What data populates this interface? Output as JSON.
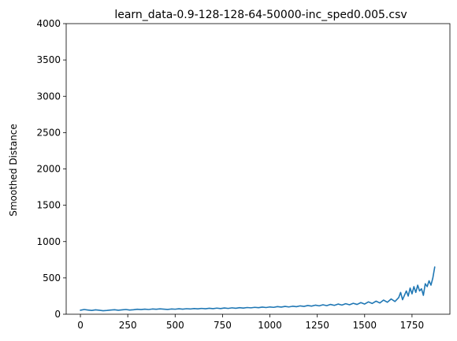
{
  "chart_data": {
    "type": "line",
    "title": "learn_data-0.9-128-128-64-50000-inc_sped0.005.csv",
    "xlabel": "",
    "ylabel": "Smoothed Distance",
    "xlim": [
      -75,
      1950
    ],
    "ylim": [
      0,
      4000
    ],
    "x_ticks": [
      0,
      250,
      500,
      750,
      1000,
      1250,
      1500,
      1750
    ],
    "y_ticks": [
      0,
      500,
      1000,
      1500,
      2000,
      2500,
      3000,
      3500,
      4000
    ],
    "grid": false,
    "legend": "none",
    "series": [
      {
        "color": "#1f77b4",
        "points": [
          [
            0,
            55
          ],
          [
            20,
            65
          ],
          [
            40,
            58
          ],
          [
            60,
            52
          ],
          [
            80,
            60
          ],
          [
            100,
            55
          ],
          [
            120,
            48
          ],
          [
            140,
            52
          ],
          [
            160,
            58
          ],
          [
            180,
            62
          ],
          [
            200,
            55
          ],
          [
            220,
            60
          ],
          [
            240,
            65
          ],
          [
            260,
            58
          ],
          [
            280,
            62
          ],
          [
            300,
            68
          ],
          [
            320,
            64
          ],
          [
            340,
            70
          ],
          [
            360,
            65
          ],
          [
            380,
            72
          ],
          [
            400,
            68
          ],
          [
            420,
            74
          ],
          [
            440,
            70
          ],
          [
            460,
            66
          ],
          [
            480,
            72
          ],
          [
            500,
            69
          ],
          [
            520,
            75
          ],
          [
            540,
            70
          ],
          [
            560,
            76
          ],
          [
            580,
            72
          ],
          [
            600,
            78
          ],
          [
            620,
            74
          ],
          [
            640,
            80
          ],
          [
            660,
            75
          ],
          [
            680,
            82
          ],
          [
            700,
            77
          ],
          [
            720,
            84
          ],
          [
            740,
            78
          ],
          [
            760,
            86
          ],
          [
            780,
            80
          ],
          [
            800,
            88
          ],
          [
            820,
            82
          ],
          [
            840,
            90
          ],
          [
            860,
            85
          ],
          [
            880,
            92
          ],
          [
            900,
            88
          ],
          [
            920,
            95
          ],
          [
            940,
            90
          ],
          [
            960,
            98
          ],
          [
            980,
            92
          ],
          [
            1000,
            100
          ],
          [
            1020,
            95
          ],
          [
            1040,
            105
          ],
          [
            1060,
            98
          ],
          [
            1080,
            108
          ],
          [
            1100,
            100
          ],
          [
            1120,
            110
          ],
          [
            1140,
            104
          ],
          [
            1160,
            115
          ],
          [
            1180,
            108
          ],
          [
            1200,
            120
          ],
          [
            1220,
            112
          ],
          [
            1240,
            125
          ],
          [
            1260,
            115
          ],
          [
            1280,
            130
          ],
          [
            1300,
            118
          ],
          [
            1320,
            135
          ],
          [
            1340,
            122
          ],
          [
            1360,
            140
          ],
          [
            1380,
            126
          ],
          [
            1400,
            145
          ],
          [
            1420,
            130
          ],
          [
            1440,
            150
          ],
          [
            1460,
            135
          ],
          [
            1480,
            160
          ],
          [
            1500,
            140
          ],
          [
            1520,
            170
          ],
          [
            1540,
            148
          ],
          [
            1560,
            180
          ],
          [
            1580,
            155
          ],
          [
            1600,
            195
          ],
          [
            1620,
            165
          ],
          [
            1640,
            210
          ],
          [
            1660,
            175
          ],
          [
            1680,
            230
          ],
          [
            1690,
            300
          ],
          [
            1700,
            200
          ],
          [
            1710,
            260
          ],
          [
            1720,
            320
          ],
          [
            1730,
            250
          ],
          [
            1740,
            360
          ],
          [
            1750,
            280
          ],
          [
            1760,
            380
          ],
          [
            1770,
            300
          ],
          [
            1780,
            400
          ],
          [
            1790,
            320
          ],
          [
            1800,
            350
          ],
          [
            1810,
            260
          ],
          [
            1820,
            420
          ],
          [
            1830,
            380
          ],
          [
            1840,
            460
          ],
          [
            1850,
            400
          ],
          [
            1860,
            500
          ],
          [
            1870,
            650
          ]
        ]
      }
    ]
  }
}
